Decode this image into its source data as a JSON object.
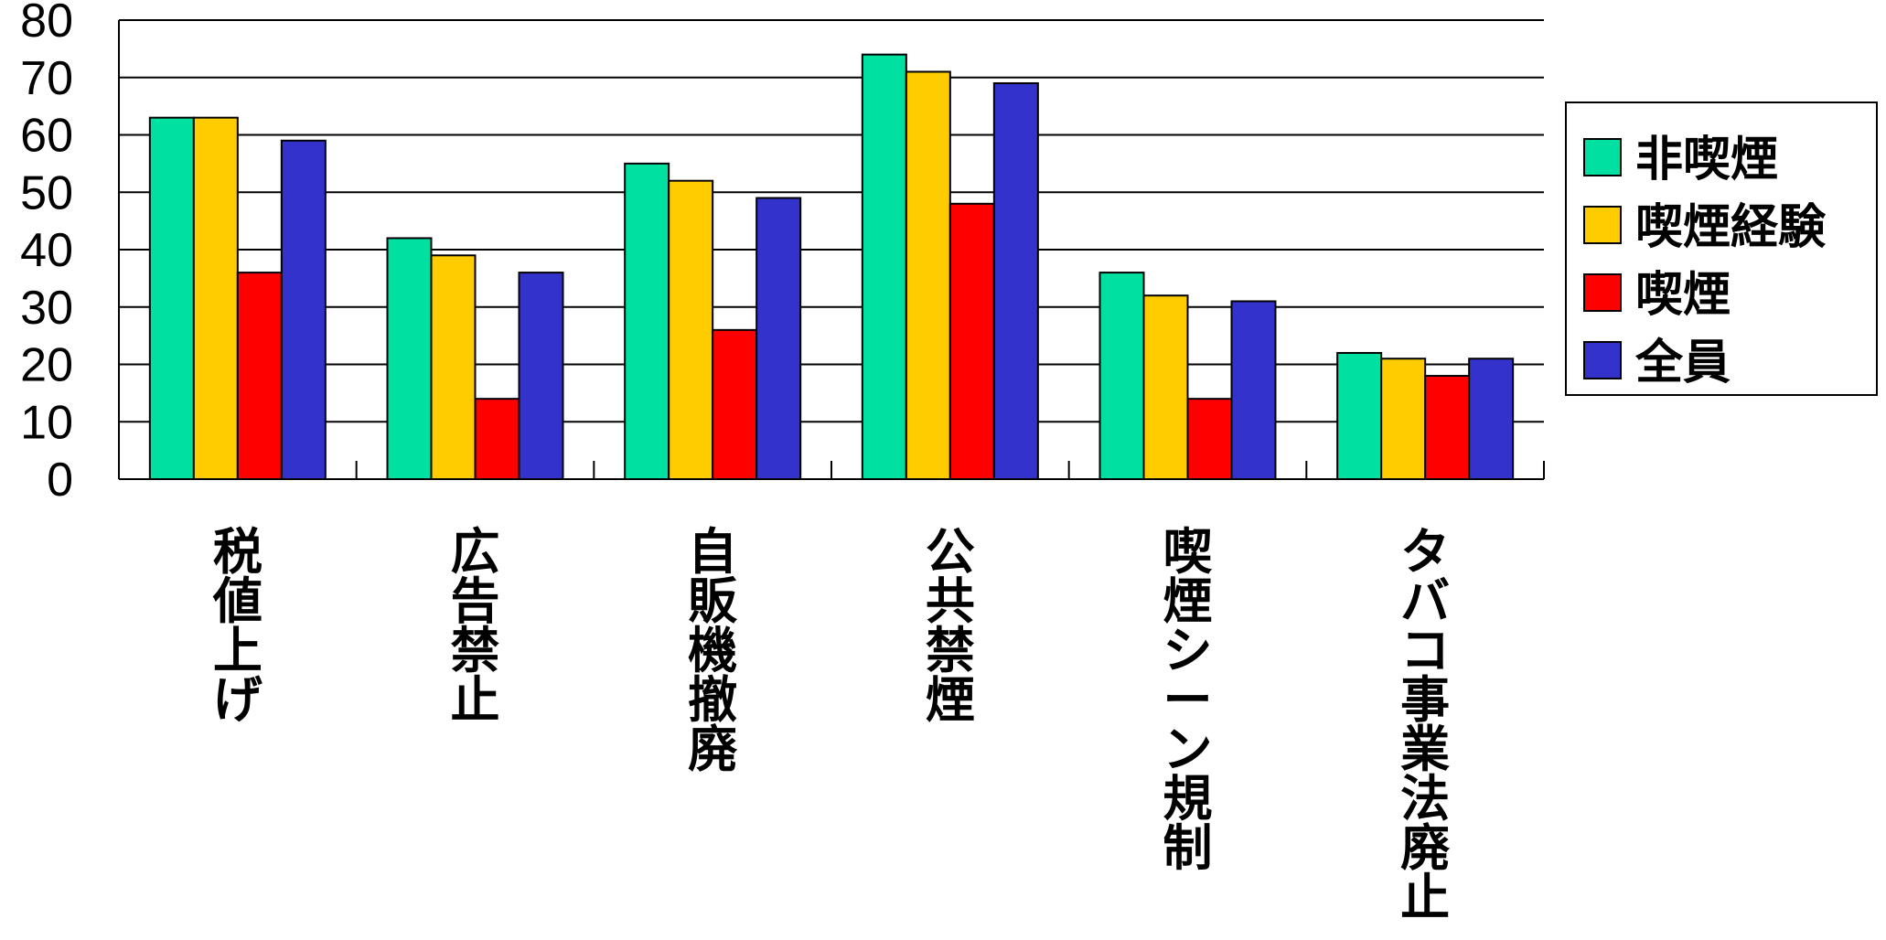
{
  "chart_data": {
    "type": "bar",
    "categories": [
      "税値上げ",
      "広告禁止",
      "自販機撤廃",
      "公共禁煙",
      "喫煙シーン規制",
      "タバコ事業法廃止"
    ],
    "series": [
      {
        "name": "非喫煙",
        "color": "#00E0A0",
        "values": [
          63,
          42,
          55,
          74,
          36,
          22
        ]
      },
      {
        "name": "喫煙経験",
        "color": "#FFCC00",
        "values": [
          63,
          39,
          52,
          71,
          32,
          21
        ]
      },
      {
        "name": "喫煙",
        "color": "#FF0000",
        "values": [
          36,
          14,
          26,
          48,
          14,
          18
        ]
      },
      {
        "name": "全員",
        "color": "#3333CC",
        "values": [
          59,
          36,
          49,
          69,
          31,
          21
        ]
      }
    ],
    "ylim": [
      0,
      80
    ],
    "yticks": [
      0,
      10,
      20,
      30,
      40,
      50,
      60,
      70,
      80
    ],
    "grid": true,
    "legend_position": "right"
  }
}
